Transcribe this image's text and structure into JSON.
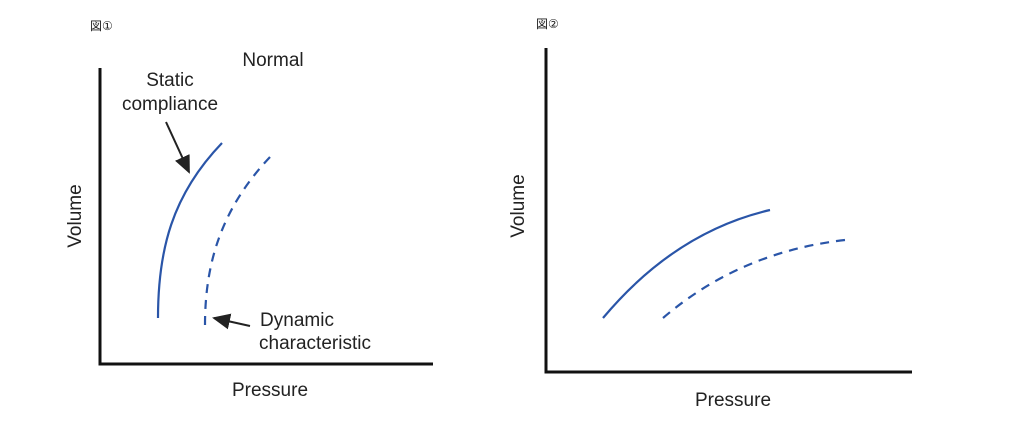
{
  "figures": [
    {
      "label": "図①",
      "title": "Normal",
      "y_label": "Volume",
      "x_label": "Pressure",
      "annotations": [
        {
          "lines": [
            "Static",
            "compliance"
          ]
        },
        {
          "lines": [
            "Dynamic",
            "characteristic"
          ]
        }
      ]
    },
    {
      "label": "図②",
      "y_label": "Volume",
      "x_label": "Pressure"
    }
  ]
}
